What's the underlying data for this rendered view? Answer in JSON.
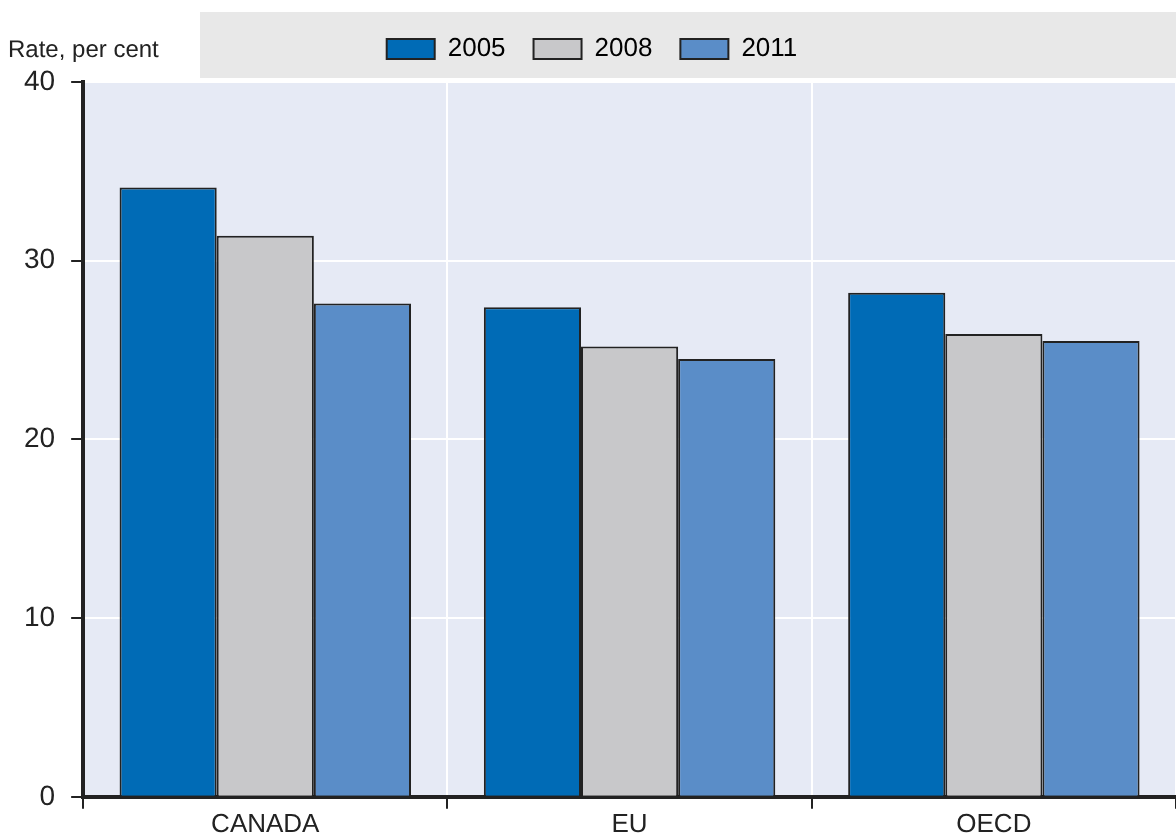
{
  "chart_data": {
    "type": "bar",
    "ylabel": "Rate, per cent",
    "categories": [
      "CANADA",
      "EU",
      "OECD"
    ],
    "series": [
      {
        "name": "2005",
        "color": "#006bb6",
        "values": [
          34.1,
          27.4,
          28.2
        ]
      },
      {
        "name": "2008",
        "color": "#c8c8ca",
        "values": [
          31.4,
          25.2,
          25.9
        ]
      },
      {
        "name": "2011",
        "color": "#5a8dc8",
        "values": [
          27.6,
          24.5,
          25.5
        ]
      }
    ],
    "ylim": [
      0,
      40
    ],
    "yticks": [
      0,
      10,
      20,
      30,
      40
    ],
    "grid": true,
    "legend": "top"
  }
}
